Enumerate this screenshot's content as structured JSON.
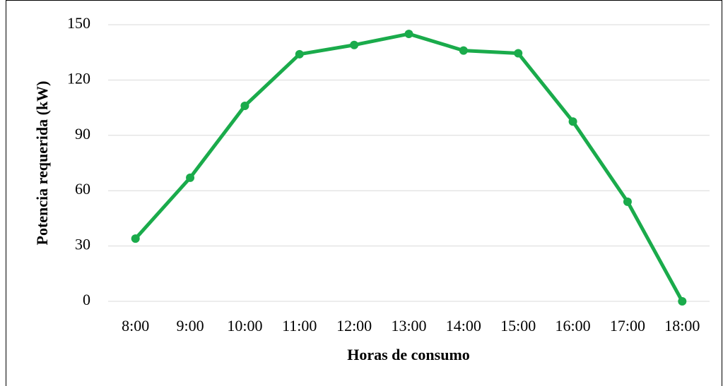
{
  "chart_data": {
    "type": "line",
    "x_label": "Horas de consumo",
    "y_label": "Potencia requerida (kW)",
    "categories": [
      "8:00",
      "9:00",
      "10:00",
      "11:00",
      "12:00",
      "13:00",
      "14:00",
      "15:00",
      "16:00",
      "17:00",
      "18:00"
    ],
    "values": [
      34,
      67,
      106,
      134,
      139,
      145,
      136,
      134.5,
      97.5,
      54,
      0
    ],
    "color": "#1aab4b",
    "ylim": [
      0,
      150
    ],
    "yticks": [
      0,
      30,
      60,
      90,
      120,
      150
    ],
    "grid": true
  }
}
